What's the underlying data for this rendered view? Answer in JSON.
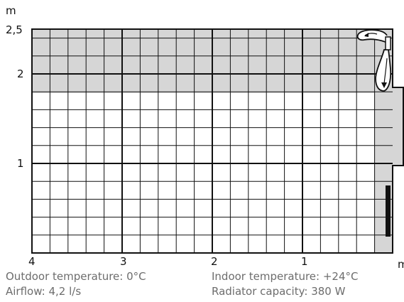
{
  "diagram": {
    "y_unit": "m",
    "x_unit": "m",
    "y_tick_labels": [
      "2,5",
      "2",
      "1"
    ],
    "x_tick_labels": [
      "4",
      "3",
      "2",
      "1"
    ],
    "colors": {
      "warm_zone": "#d6d6d6",
      "grid_line": "#111111",
      "heater": "#111111",
      "background": "#ffffff",
      "caption_text": "#6d6d6d"
    },
    "icons": [
      "curved-airflow-arrow-icon",
      "downward-airflow-arrow-icon",
      "air-vent-icon",
      "radiator-icon"
    ]
  },
  "captions": {
    "outdoor_temperature": "Outdoor temperature: 0°C",
    "airflow": "Airflow: 4,2 l/s",
    "indoor_temperature": "Indoor temperature: +24°C",
    "radiator_capacity": "Radiator capacity: 380 W"
  }
}
